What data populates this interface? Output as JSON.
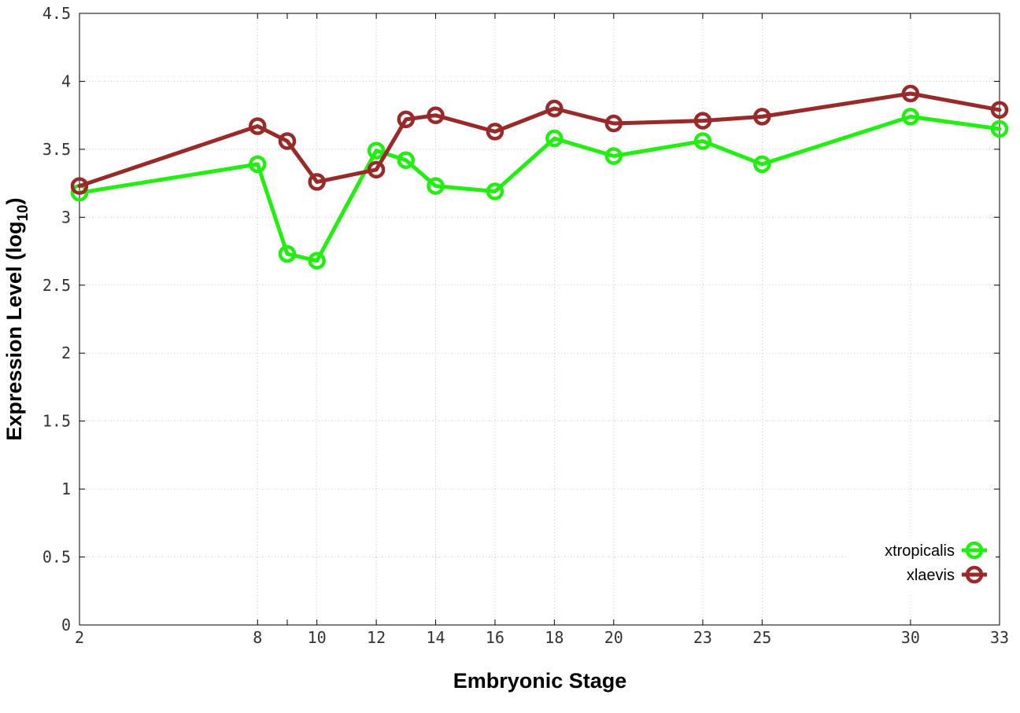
{
  "chart_data": {
    "type": "line",
    "xlabel": "Embryonic Stage",
    "ylabel_main": "Expression Level (log",
    "ylabel_sub": "10",
    "ylabel_close": ")",
    "ylim": [
      0,
      4.5
    ],
    "yticks": [
      "0",
      "0.5",
      "1",
      "1.5",
      "2",
      "2.5",
      "3",
      "3.5",
      "4",
      "4.5"
    ],
    "x": [
      2,
      8,
      9,
      10,
      12,
      13,
      14,
      16,
      18,
      20,
      23,
      25,
      30,
      33
    ],
    "xticks": [
      "2",
      "8",
      "10",
      "12",
      "14",
      "16",
      "18",
      "20",
      "23",
      "25",
      "30",
      "33"
    ],
    "grid": true,
    "legend_position": "bottom-right",
    "series": [
      {
        "name": "xtropicalis",
        "color": "#22ee11",
        "values": [
          3.18,
          3.39,
          2.73,
          2.68,
          3.49,
          3.42,
          3.23,
          3.19,
          3.58,
          3.45,
          3.56,
          3.39,
          3.74,
          3.65
        ]
      },
      {
        "name": "xlaevis",
        "color": "#992a2a",
        "values": [
          3.23,
          3.67,
          3.56,
          3.26,
          3.35,
          3.72,
          3.75,
          3.63,
          3.8,
          3.69,
          3.71,
          3.74,
          3.91,
          3.79
        ]
      }
    ]
  }
}
